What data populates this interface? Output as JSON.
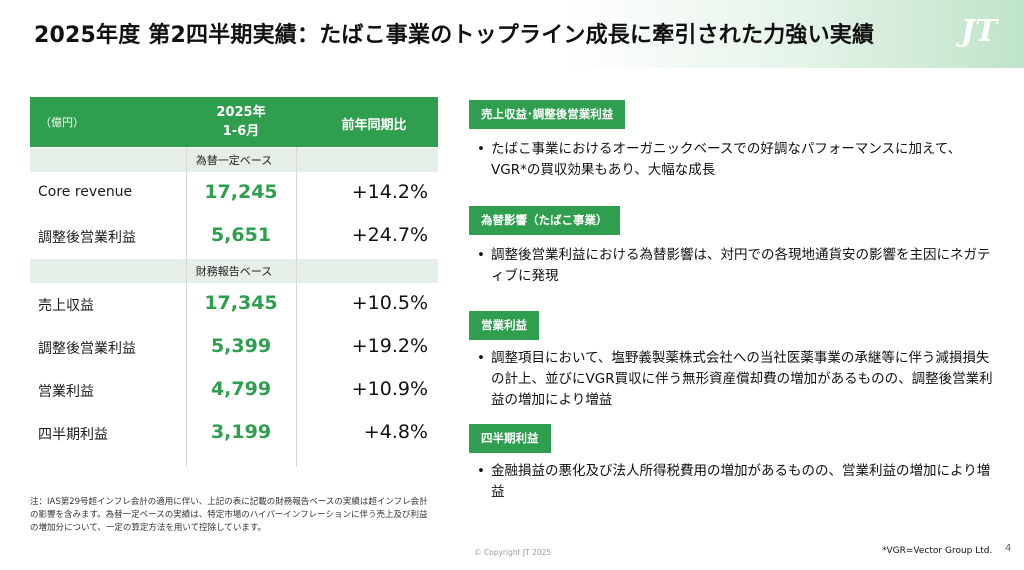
{
  "header": {
    "title": "2025年度 第2四半期実績：たばこ事業のトップライン成長に牽引された力強い実績",
    "logo": "JT"
  },
  "table": {
    "unit": "（億円）",
    "period_line1": "2025年",
    "period_line2": "1-6月",
    "yoy_header": "前年同期比",
    "section1": "為替一定ベース",
    "rows1": [
      {
        "label": "Core revenue",
        "value": "17,245",
        "change": "+14.2%"
      },
      {
        "label": "調整後営業利益",
        "value": "5,651",
        "change": "+24.7%"
      }
    ],
    "section2": "財務報告ベース",
    "rows2": [
      {
        "label": "売上収益",
        "value": "17,345",
        "change": "+10.5%"
      },
      {
        "label": "調整後営業利益",
        "value": "5,399",
        "change": "+19.2%"
      },
      {
        "label": "営業利益",
        "value": "4,799",
        "change": "+10.9%"
      },
      {
        "label": "四半期利益",
        "value": "3,199",
        "change": "+4.8%"
      }
    ]
  },
  "note": "注：IAS第29号超インフレ会計の適用に伴い、上記の表に記載の財務報告ベースの実績は超インフレ会計の影響を含みます。為替一定ベースの実績は、特定市場のハイパーインフレーションに伴う売上及び利益の増加分について、一定の算定方法を用いて控除しています。",
  "points": [
    {
      "tag": "売上収益･調整後営業利益",
      "text": "たばこ事業におけるオーガニックベースでの好調なパフォーマンスに加えて、VGR*の買収効果もあり、大幅な成長"
    },
    {
      "tag": "為替影響（たばこ事業）",
      "text": "調整後営業利益における為替影響は、対円での各現地通貨安の影響を主因にネガティブに発現"
    },
    {
      "tag": "営業利益",
      "text": "調整項目において、塩野義製薬株式会社への当社医薬事業の承継等に伴う減損損失の計上、並びにVGR買収に伴う無形資産償却費の増加があるものの、調整後営業利益の増加により増益"
    },
    {
      "tag": "四半期利益",
      "text": "金融損益の悪化及び法人所得税費用の増加があるものの、営業利益の増加により増益"
    }
  ],
  "footer": {
    "copyright": "© Copyright JT 2025",
    "vgr_note": "*VGR=Vector Group Ltd.",
    "page": "4"
  },
  "colors": {
    "accent": "#2f9e4f",
    "section_bg": "#e6eee8"
  }
}
